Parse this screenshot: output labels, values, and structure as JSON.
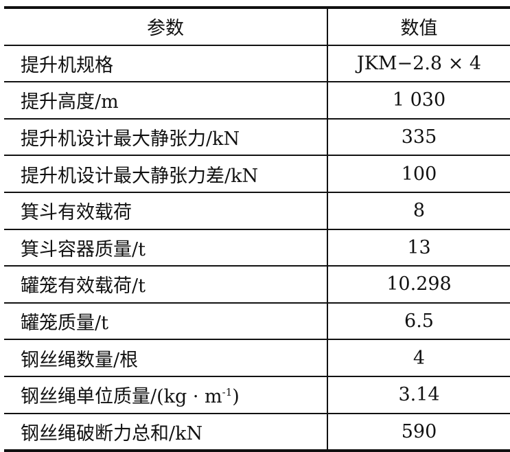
{
  "table": {
    "headers": [
      "参数",
      "数值"
    ],
    "rows": [
      {
        "param": "提升机规格",
        "value": "JKM−2.8 × 4"
      },
      {
        "param": "提升高度/m",
        "value": "1 030"
      },
      {
        "param": "提升机设计最大静张力/kN",
        "value": "335"
      },
      {
        "param": "提升机设计最大静张力差/kN",
        "value": "100"
      },
      {
        "param": "箕斗有效载荷",
        "value": "8"
      },
      {
        "param": "箕斗容器质量/t",
        "value": "13"
      },
      {
        "param": "罐笼有效载荷/t",
        "value": "10.298"
      },
      {
        "param": "罐笼质量/t",
        "value": "6.5"
      },
      {
        "param": "钢丝绳数量/根",
        "value": "4"
      },
      {
        "param": "钢丝绳单位质量/(kg · m",
        "param_sup": "-1",
        "param_tail": ")",
        "value": "3.14"
      },
      {
        "param": "钢丝绳破断力总和/kN",
        "value": "590"
      }
    ]
  }
}
